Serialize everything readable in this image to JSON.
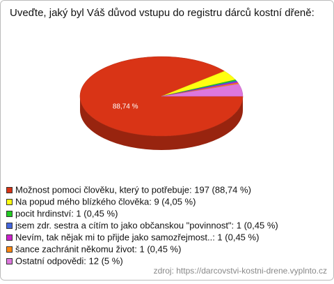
{
  "chart_data": {
    "type": "pie",
    "title": "Uveďte, jaký byl Váš důvod vstupu do registru dárců kostní dřeně:",
    "categories": [
      "Možnost pomoci člověku, který to potřebuje: 197 (88,74 %)",
      "Na popud mého blízkého člověka: 9 (4,05 %)",
      "pocit hrdinství: 1 (0,45 %)",
      "jsem zdr. sestra a cítím to jako občanskou \"povinnost\": 1 (0,45 %)",
      "Nevím, tak nějak mi to přijde jako samozřejmost..: 1 (0,45 %)",
      "šance zachránit někomu život: 1 (0,45 %)",
      "Ostatní odpovědi: 12 (5 %)"
    ],
    "values": [
      88.74,
      4.05,
      0.45,
      0.45,
      0.45,
      0.45,
      5
    ],
    "value_labels": [
      "88,74 %",
      null,
      null,
      null,
      null,
      null,
      null
    ],
    "colors": [
      "#d93416",
      "#ffff11",
      "#22cc22",
      "#4466dd",
      "#cc22cc",
      "#ff8811",
      "#dd77dd"
    ],
    "source": "zdroj: https://darcovstvi-kostni-drene.vyplnto.cz"
  }
}
